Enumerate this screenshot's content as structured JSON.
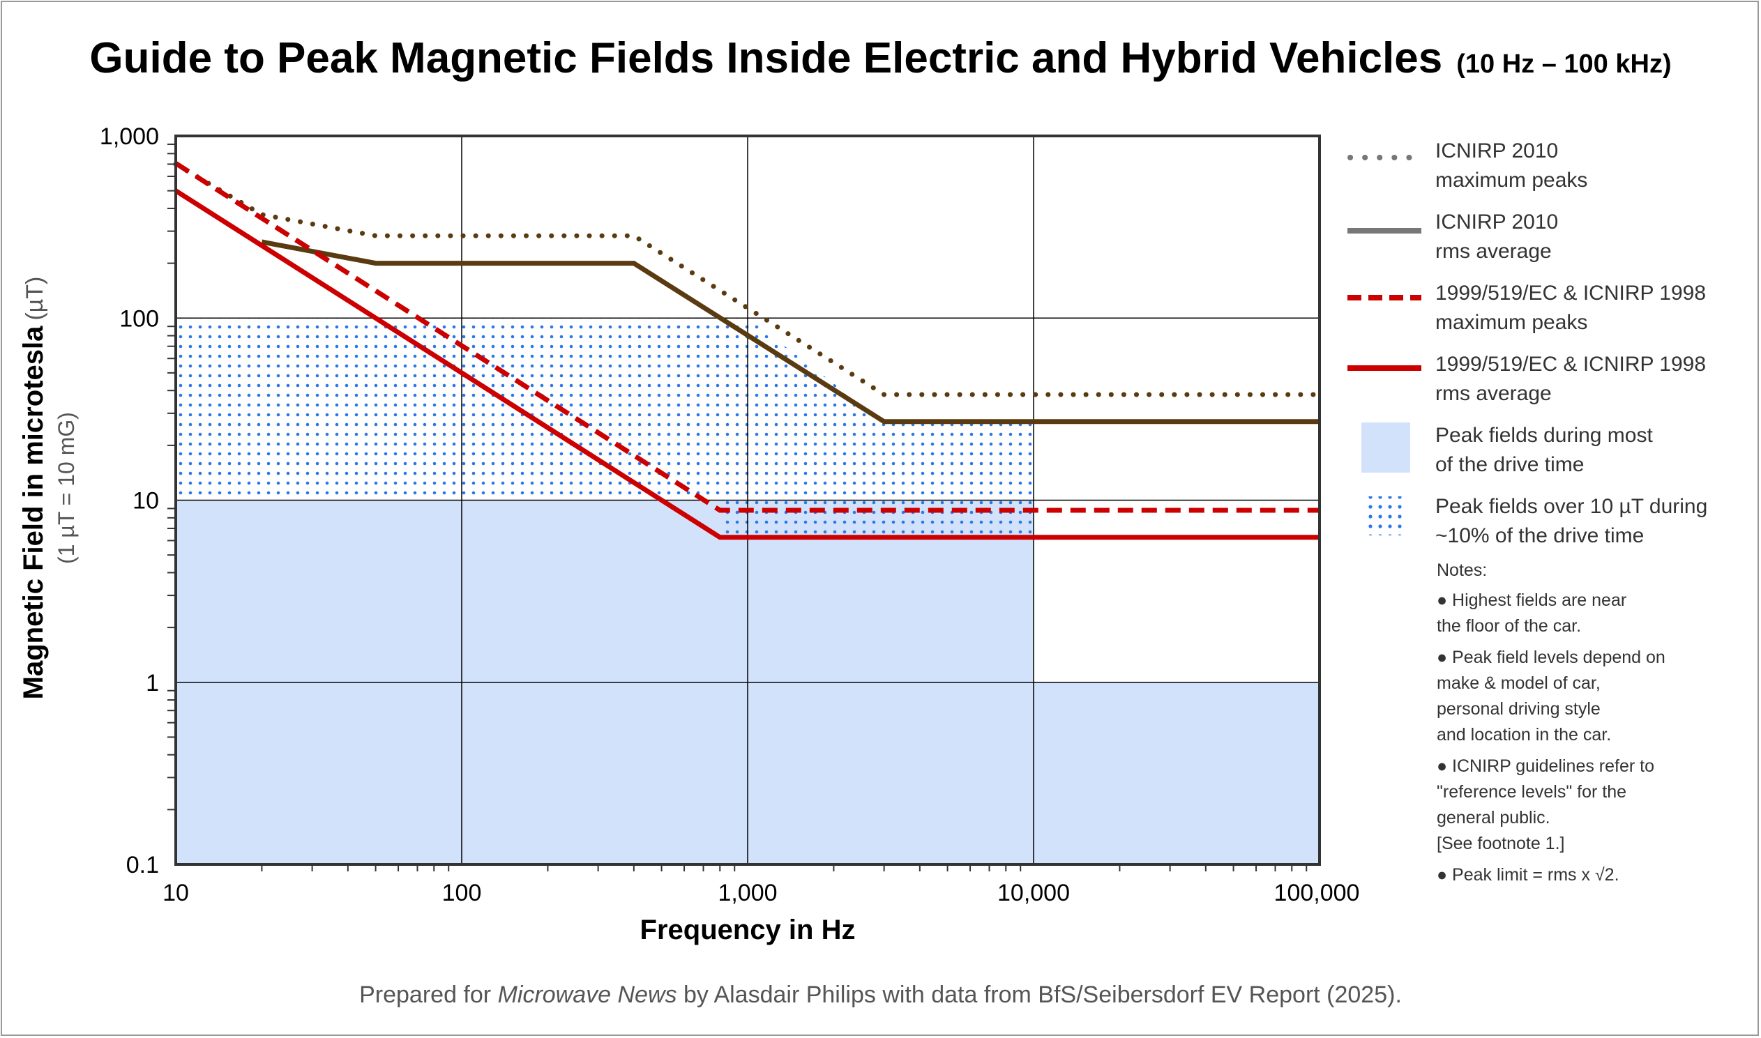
{
  "title": "Guide to Peak Magnetic Fields Inside Electric and Hybrid Vehicles",
  "subtitle": "(10 Hz – 100 kHz)",
  "footer": {
    "prefix": "Prepared for ",
    "italic": "Microwave News",
    "suffix": " by Alasdair Philips with data from BfS/Seibersdorf EV Report (2025)."
  },
  "colors": {
    "icnirp_2010": "#5a3a10",
    "ec_1998": "#cc0000",
    "fill_light": "#d3e2fb",
    "dots": "#2a78e8",
    "legend_gray": "#777777"
  },
  "legend": [
    {
      "style": "dotted",
      "color": "#777777",
      "line1": "ICNIRP 2010",
      "line2": "maximum peaks"
    },
    {
      "style": "solid",
      "color": "#777777",
      "line1": "ICNIRP 2010",
      "line2": "rms average"
    },
    {
      "style": "dashed",
      "color": "#cc0000",
      "line1": "1999/519/EC & ICNIRP 1998",
      "line2": "maximum peaks"
    },
    {
      "style": "solid",
      "color": "#cc0000",
      "line1": "1999/519/EC & ICNIRP 1998",
      "line2": "rms average"
    },
    {
      "style": "fill",
      "color": "#d3e2fb",
      "line1": "Peak fields during most",
      "line2": "of the drive time"
    },
    {
      "style": "dots",
      "color": "#2a78e8",
      "line1": "Peak fields over 10 µT during",
      "line2": "~10% of the drive time"
    }
  ],
  "notes": {
    "title": "Notes:",
    "items": [
      [
        "● Highest fields are near",
        "the floor of the car."
      ],
      [
        "● Peak field levels depend on",
        "make & model of car,",
        "personal driving style",
        "and location in the car."
      ],
      [
        "● ICNIRP guidelines refer to",
        "\"reference levels\" for the",
        "general public.",
        "[See footnote 1.]"
      ],
      [
        "● Peak limit = rms x √2."
      ]
    ]
  },
  "chart_data": {
    "type": "line",
    "xlabel": "Frequency in Hz",
    "ylabel": "Magnetic Field in microtesla",
    "ylabel_unit": "(µT)",
    "ylabel_note": "(1 µT = 10 mG)",
    "x_scale": "log",
    "y_scale": "log",
    "xlim": [
      10,
      100000
    ],
    "ylim": [
      0.1,
      1000
    ],
    "grid": true,
    "legend_position": "right",
    "x_ticks": [
      {
        "value": 10,
        "label": "10"
      },
      {
        "value": 100,
        "label": "100"
      },
      {
        "value": 1000,
        "label": "1,000"
      },
      {
        "value": 10000,
        "label": "10,000"
      },
      {
        "value": 100000,
        "label": "100,000"
      }
    ],
    "y_ticks": [
      {
        "value": 0.1,
        "label": "0.1"
      },
      {
        "value": 1,
        "label": "1"
      },
      {
        "value": 10,
        "label": "10"
      },
      {
        "value": 100,
        "label": "100"
      },
      {
        "value": 1000,
        "label": "1,000"
      }
    ],
    "regions": [
      {
        "name": "Peak fields during most of the drive time",
        "style": "fill",
        "polygon": [
          [
            10,
            0.1
          ],
          [
            10,
            10
          ],
          [
            10000,
            10
          ],
          [
            10000,
            1
          ],
          [
            100000,
            1
          ],
          [
            100000,
            0.1
          ]
        ]
      },
      {
        "name": "Peak fields over 10 µT during ~10% of the drive time",
        "style": "dots",
        "polygon": [
          [
            10,
            10
          ],
          [
            10,
            100
          ],
          [
            1000,
            100
          ],
          [
            3000,
            27
          ],
          [
            10000,
            27
          ],
          [
            10000,
            6.25
          ],
          [
            800,
            6.25
          ],
          [
            800,
            10
          ]
        ]
      }
    ],
    "series": [
      {
        "name": "ICNIRP 2010 maximum peaks",
        "style": "dotted",
        "color": "#5a3a10",
        "points": [
          [
            10,
            700
          ],
          [
            20,
            370
          ],
          [
            50,
            283
          ],
          [
            400,
            283
          ],
          [
            3000,
            38
          ],
          [
            100000,
            38
          ]
        ]
      },
      {
        "name": "ICNIRP 2010 rms average",
        "style": "solid",
        "color": "#5a3a10",
        "points": [
          [
            20,
            262
          ],
          [
            50,
            200
          ],
          [
            400,
            200
          ],
          [
            3000,
            27
          ],
          [
            100000,
            27
          ]
        ]
      },
      {
        "name": "1999/519/EC & ICNIRP 1998 maximum peaks",
        "style": "dashed",
        "color": "#cc0000",
        "points": [
          [
            10,
            707
          ],
          [
            800,
            8.8
          ],
          [
            100000,
            8.8
          ]
        ]
      },
      {
        "name": "1999/519/EC & ICNIRP 1998 rms average",
        "style": "solid",
        "color": "#cc0000",
        "points": [
          [
            10,
            500
          ],
          [
            800,
            6.25
          ],
          [
            100000,
            6.25
          ]
        ]
      }
    ]
  }
}
